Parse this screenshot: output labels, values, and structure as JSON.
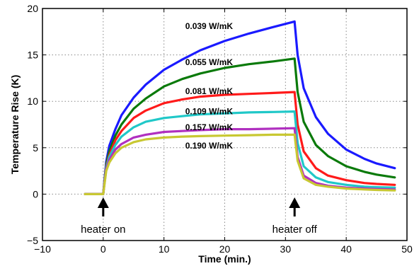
{
  "chart_data": {
    "type": "line",
    "title": "",
    "xlabel": "Time (min.)",
    "ylabel": "Temperature Rise (K)",
    "xlim": [
      -10,
      50
    ],
    "ylim": [
      -5,
      20
    ],
    "xticks": [
      -10,
      0,
      10,
      20,
      30,
      40,
      50
    ],
    "yticks": [
      -5,
      0,
      5,
      10,
      15,
      20
    ],
    "xtick_labels": [
      "−10",
      "0",
      "10",
      "20",
      "30",
      "40",
      "50"
    ],
    "ytick_labels": [
      "−5",
      "0",
      "5",
      "10",
      "15",
      "20"
    ],
    "grid": true,
    "heater_on_time": 0,
    "heater_off_time": 31.5,
    "series": [
      {
        "name": "0.039 W/mK",
        "color": "#1a1aff",
        "x": [
          -3,
          0,
          0.5,
          1,
          2,
          3,
          5,
          7,
          10,
          13,
          16,
          20,
          24,
          28,
          31.5,
          32,
          33,
          35,
          37,
          40,
          43,
          45,
          48
        ],
        "y": [
          0,
          0,
          3.5,
          5.2,
          7.0,
          8.5,
          10.4,
          11.8,
          13.4,
          14.5,
          15.5,
          16.5,
          17.3,
          18.0,
          18.6,
          15.0,
          11.4,
          8.3,
          6.5,
          4.8,
          3.8,
          3.3,
          2.8
        ]
      },
      {
        "name": "0.055 W/mK",
        "color": "#0a7a0a",
        "x": [
          -3,
          0,
          0.5,
          1,
          2,
          3,
          5,
          7,
          10,
          13,
          16,
          20,
          24,
          28,
          31.5,
          32,
          33,
          35,
          37,
          40,
          43,
          45,
          48
        ],
        "y": [
          0,
          0,
          3.2,
          4.6,
          6.3,
          7.5,
          9.2,
          10.3,
          11.6,
          12.4,
          13.0,
          13.6,
          14.0,
          14.3,
          14.6,
          11.0,
          7.8,
          5.3,
          4.1,
          3.0,
          2.4,
          2.1,
          1.8
        ]
      },
      {
        "name": "0.081 W/mK",
        "color": "#ff1a1a",
        "x": [
          -3,
          0,
          0.5,
          1,
          2,
          3,
          5,
          7,
          10,
          13,
          16,
          20,
          24,
          28,
          31.5,
          32,
          33,
          35,
          37,
          40,
          43,
          45,
          48
        ],
        "y": [
          0,
          0,
          3.0,
          4.2,
          5.8,
          6.8,
          8.2,
          9.0,
          9.8,
          10.2,
          10.5,
          10.7,
          10.8,
          10.9,
          11.0,
          7.5,
          4.6,
          2.8,
          2.0,
          1.5,
          1.2,
          1.1,
          1.0
        ]
      },
      {
        "name": "0.109 W/mK",
        "color": "#20c8c8",
        "x": [
          -3,
          0,
          0.5,
          1,
          2,
          3,
          5,
          7,
          10,
          13,
          16,
          20,
          24,
          28,
          31.5,
          32,
          33,
          35,
          37,
          40,
          43,
          45,
          48
        ],
        "y": [
          0,
          0,
          2.9,
          4.0,
          5.3,
          6.2,
          7.2,
          7.8,
          8.2,
          8.4,
          8.6,
          8.7,
          8.8,
          8.85,
          8.9,
          5.5,
          3.0,
          1.8,
          1.3,
          1.0,
          0.8,
          0.75,
          0.7
        ]
      },
      {
        "name": "0.157 W/mK",
        "color": "#b030c0",
        "x": [
          -3,
          0,
          0.5,
          1,
          2,
          3,
          5,
          7,
          10,
          13,
          16,
          20,
          24,
          28,
          31.5,
          32,
          33,
          35,
          37,
          40,
          43,
          45,
          48
        ],
        "y": [
          0,
          0,
          2.7,
          3.7,
          4.8,
          5.4,
          6.1,
          6.4,
          6.7,
          6.8,
          6.9,
          7.0,
          7.0,
          7.05,
          7.1,
          4.0,
          2.0,
          1.2,
          0.9,
          0.7,
          0.6,
          0.55,
          0.5
        ]
      },
      {
        "name": "0.190 W/mK",
        "color": "#c8c832",
        "x": [
          -3,
          0,
          0.5,
          1,
          2,
          3,
          5,
          7,
          10,
          13,
          16,
          20,
          24,
          28,
          31.5,
          32,
          33,
          35,
          37,
          40,
          43,
          45,
          48
        ],
        "y": [
          0,
          0,
          2.5,
          3.4,
          4.4,
          5.0,
          5.6,
          5.9,
          6.1,
          6.2,
          6.25,
          6.3,
          6.35,
          6.4,
          6.4,
          3.6,
          1.7,
          1.0,
          0.8,
          0.6,
          0.5,
          0.45,
          0.4
        ]
      }
    ],
    "series_label_positions": [
      {
        "x": 13.5,
        "y": 18.1
      },
      {
        "x": 13.5,
        "y": 14.2
      },
      {
        "x": 13.5,
        "y": 11.1
      },
      {
        "x": 13.5,
        "y": 8.9
      },
      {
        "x": 13.5,
        "y": 7.2
      },
      {
        "x": 13.5,
        "y": 5.2
      }
    ],
    "annotations": [
      {
        "text": "heater on",
        "x": 0
      },
      {
        "text": "heater off",
        "x": 31.5
      }
    ]
  }
}
